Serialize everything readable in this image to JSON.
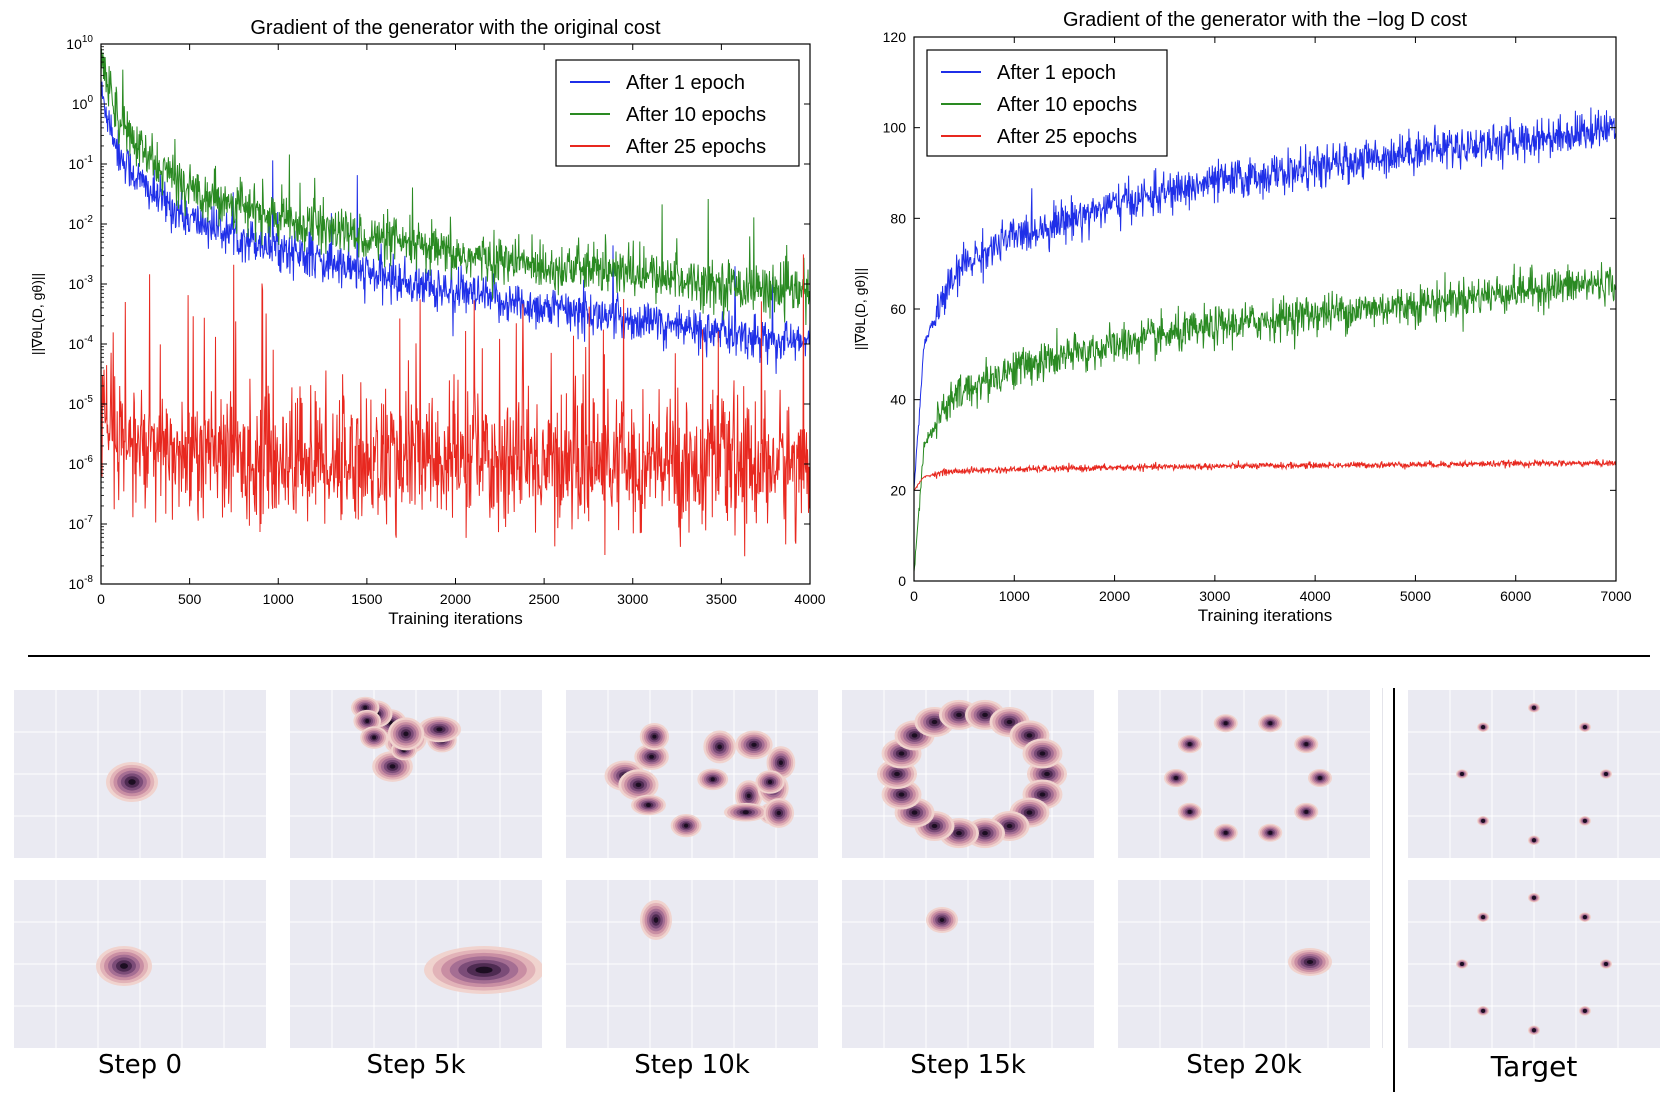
{
  "chart_data": [
    {
      "type": "line",
      "title": "Gradient of the generator with the original cost",
      "xlabel": "Training iterations",
      "ylabel": "||∇θL(D, gθ)||",
      "xlim": [
        0,
        4000
      ],
      "ylim": [
        1e-08,
        10
      ],
      "yscale": "log",
      "xticks": [
        "0",
        "500",
        "1000",
        "1500",
        "2000",
        "2500",
        "3000",
        "3500",
        "4000"
      ],
      "yticks": [
        "10",
        "0",
        "-1",
        "-2",
        "-3",
        "-4",
        "-5",
        "-6",
        "-7",
        "-8"
      ],
      "grid": false,
      "legend": "top-right",
      "series": [
        {
          "name": "After 1 epoch",
          "color": "#1f2fe8",
          "x": [
            0,
            50,
            100,
            200,
            300,
            500,
            1000,
            1500,
            2000,
            2500,
            3000,
            3500,
            4000
          ],
          "values": [
            1.5,
            0.5,
            0.15,
            0.06,
            0.03,
            0.012,
            0.004,
            0.0015,
            0.0007,
            0.0004,
            0.00025,
            0.00015,
            0.0001
          ]
        },
        {
          "name": "After 10 epochs",
          "color": "#2a8a22",
          "x": [
            0,
            50,
            100,
            200,
            300,
            500,
            1000,
            1500,
            2000,
            2500,
            3000,
            3500,
            4000
          ],
          "values": [
            5,
            2,
            0.6,
            0.2,
            0.1,
            0.04,
            0.012,
            0.006,
            0.003,
            0.002,
            0.0015,
            0.001,
            0.0007
          ]
        },
        {
          "name": "After 25 epochs",
          "color": "#e8281f",
          "x": [
            0,
            50,
            100,
            200,
            300,
            500,
            1000,
            1500,
            2000,
            2500,
            3000,
            3500,
            4000
          ],
          "values": [
            1e-05,
            3e-06,
            2e-06,
            2e-06,
            1.5e-06,
            1.5e-06,
            1.2e-06,
            1.2e-06,
            1.2e-06,
            1.1e-06,
            1e-06,
            1e-06,
            1e-06
          ]
        }
      ]
    },
    {
      "type": "line",
      "title": "Gradient of the generator with the −log D cost",
      "xlabel": "Training iterations",
      "ylabel": "||∇θL(D, gθ)||",
      "xlim": [
        0,
        7000
      ],
      "ylim": [
        0,
        120
      ],
      "xticks": [
        "0",
        "1000",
        "2000",
        "3000",
        "4000",
        "5000",
        "6000",
        "7000"
      ],
      "yticks": [
        "0",
        "20",
        "40",
        "60",
        "80",
        "100",
        "120"
      ],
      "grid": false,
      "legend": "top-left",
      "series": [
        {
          "name": "After 1 epoch",
          "color": "#1f2fe8",
          "x": [
            0,
            100,
            300,
            500,
            1000,
            2000,
            3000,
            4000,
            5000,
            6000,
            7000
          ],
          "values": [
            20,
            52,
            63,
            70,
            76,
            83,
            88,
            91,
            95,
            97,
            100
          ]
        },
        {
          "name": "After 10 epochs",
          "color": "#2a8a22",
          "x": [
            0,
            100,
            300,
            500,
            1000,
            2000,
            3000,
            4000,
            5000,
            6000,
            7000
          ],
          "values": [
            2,
            30,
            38,
            42,
            47,
            52,
            56,
            59,
            61,
            64,
            66
          ]
        },
        {
          "name": "After 25 epochs",
          "color": "#e8281f",
          "x": [
            0,
            100,
            300,
            500,
            1000,
            2000,
            3000,
            4000,
            5000,
            6000,
            7000
          ],
          "values": [
            20,
            23,
            24,
            24.3,
            24.6,
            25,
            25.3,
            25.5,
            25.7,
            25.9,
            26
          ]
        }
      ]
    }
  ],
  "grid_labels": {
    "steps": [
      "Step 0",
      "Step 5k",
      "Step 10k",
      "Step 15k",
      "Step 20k"
    ],
    "target": "Target"
  }
}
